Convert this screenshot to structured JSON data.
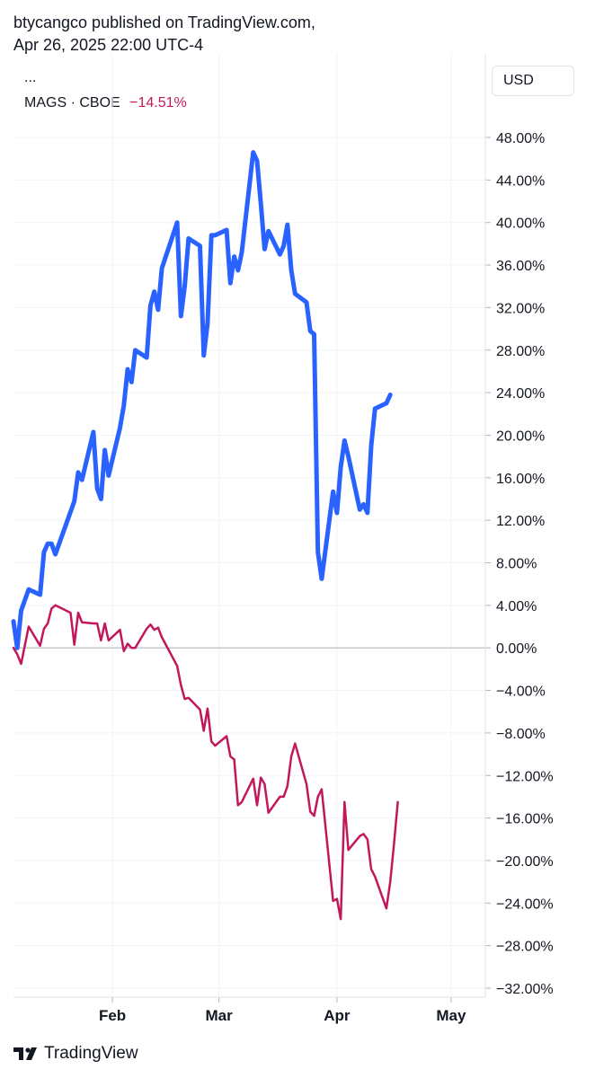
{
  "header": {
    "line1": "btycangco published on TradingView.com,",
    "line2": "Apr 26, 2025 22:00 UTC-4"
  },
  "legend": {
    "ellipsis": "...",
    "symbol": "MAGS · CBOE",
    "change": "−14.51%"
  },
  "currency_label": "USD",
  "footer": {
    "brand": "TradingView"
  },
  "colors": {
    "blue_series": "#2962ff",
    "mags_series": "#c2185b",
    "grid": "#f0f3fa",
    "zero_line": "#b2b5be",
    "axis_text": "#131722"
  },
  "chart_data": {
    "type": "line",
    "y_unit": "%",
    "ylim": [
      -32,
      48
    ],
    "y_ticks": [
      {
        "value": 48,
        "label": "48.00%"
      },
      {
        "value": 44,
        "label": "44.00%"
      },
      {
        "value": 40,
        "label": "40.00%"
      },
      {
        "value": 36,
        "label": "36.00%"
      },
      {
        "value": 32,
        "label": "32.00%"
      },
      {
        "value": 28,
        "label": "28.00%"
      },
      {
        "value": 24,
        "label": "24.00%"
      },
      {
        "value": 20,
        "label": "20.00%"
      },
      {
        "value": 16,
        "label": "16.00%"
      },
      {
        "value": 12,
        "label": "12.00%"
      },
      {
        "value": 8,
        "label": "8.00%"
      },
      {
        "value": 4,
        "label": "4.00%"
      },
      {
        "value": 0,
        "label": "0.00%"
      },
      {
        "value": -4,
        "label": "−4.00%"
      },
      {
        "value": -8,
        "label": "−8.00%"
      },
      {
        "value": -12,
        "label": "−12.00%"
      },
      {
        "value": -16,
        "label": "−16.00%"
      },
      {
        "value": -20,
        "label": "−20.00%"
      },
      {
        "value": -24,
        "label": "−24.00%"
      },
      {
        "value": -28,
        "label": "−28.00%"
      },
      {
        "value": -32,
        "label": "−32.00%"
      }
    ],
    "x_range": [
      "2025-01-06",
      "2025-05-10"
    ],
    "x_ticks": [
      {
        "date": "2025-02-01",
        "label": "Feb"
      },
      {
        "date": "2025-03-01",
        "label": "Mar"
      },
      {
        "date": "2025-04-01",
        "label": "Apr"
      },
      {
        "date": "2025-05-01",
        "label": "May"
      }
    ],
    "grid": true,
    "legend_position": "top-left",
    "series": [
      {
        "x": [
          "2025-01-06",
          "2025-01-07",
          "2025-01-08",
          "2025-01-10",
          "2025-01-13",
          "2025-01-14",
          "2025-01-15",
          "2025-01-16",
          "2025-01-17",
          "2025-01-21",
          "2025-01-22",
          "2025-01-23",
          "2025-01-24",
          "2025-01-27",
          "2025-01-28",
          "2025-01-29",
          "2025-01-30",
          "2025-01-31",
          "2025-02-03",
          "2025-02-04",
          "2025-02-05",
          "2025-02-06",
          "2025-02-07",
          "2025-02-10",
          "2025-02-11",
          "2025-02-12",
          "2025-02-13",
          "2025-02-14",
          "2025-02-18",
          "2025-02-19",
          "2025-02-20",
          "2025-02-21",
          "2025-02-24",
          "2025-02-25",
          "2025-02-26",
          "2025-02-27",
          "2025-02-28",
          "2025-03-03",
          "2025-03-04",
          "2025-03-05",
          "2025-03-06",
          "2025-03-07",
          "2025-03-10",
          "2025-03-11",
          "2025-03-12",
          "2025-03-13",
          "2025-03-14",
          "2025-03-17",
          "2025-03-18",
          "2025-03-19",
          "2025-03-20",
          "2025-03-21",
          "2025-03-24",
          "2025-03-25",
          "2025-03-26",
          "2025-03-27",
          "2025-03-28",
          "2025-03-31",
          "2025-04-01",
          "2025-04-02",
          "2025-04-03",
          "2025-04-04",
          "2025-04-07",
          "2025-04-08",
          "2025-04-09",
          "2025-04-10",
          "2025-04-11",
          "2025-04-14",
          "2025-04-15",
          "2025-04-16",
          "2025-04-17",
          "2025-04-21",
          "2025-04-22",
          "2025-04-23",
          "2025-04-24",
          "2025-04-25"
        ],
        "values": [
          2.5,
          0.0,
          3.5,
          5.5,
          5.0,
          9.0,
          9.8,
          9.8,
          8.8,
          12.8,
          13.8,
          16.5,
          15.8,
          20.3,
          15.0,
          14.0,
          18.6,
          16.2,
          20.7,
          22.8,
          26.2,
          25.0,
          28.0,
          27.3,
          32.2,
          33.5,
          31.8,
          35.7,
          40.0,
          31.2,
          34.0,
          38.5,
          37.8,
          27.5,
          30.5,
          38.8,
          38.8,
          39.3,
          34.3,
          36.8,
          35.5,
          37.2,
          46.6,
          45.8,
          41.8,
          37.5,
          39.2,
          37.0,
          37.8,
          39.8,
          35.5,
          33.3,
          32.5,
          29.8,
          29.5,
          9.0,
          6.5,
          14.7,
          12.7,
          17.0,
          19.5,
          18.0,
          13.0,
          13.5,
          12.7,
          19.0,
          22.5,
          23.0,
          23.8,
          null,
          null,
          null,
          null,
          null,
          null,
          null
        ]
      },
      {
        "x": [
          "2025-01-06",
          "2025-01-07",
          "2025-01-08",
          "2025-01-10",
          "2025-01-13",
          "2025-01-14",
          "2025-01-15",
          "2025-01-16",
          "2025-01-17",
          "2025-01-21",
          "2025-01-22",
          "2025-01-23",
          "2025-01-24",
          "2025-01-27",
          "2025-01-28",
          "2025-01-29",
          "2025-01-30",
          "2025-01-31",
          "2025-02-03",
          "2025-02-04",
          "2025-02-05",
          "2025-02-06",
          "2025-02-07",
          "2025-02-10",
          "2025-02-11",
          "2025-02-12",
          "2025-02-13",
          "2025-02-14",
          "2025-02-18",
          "2025-02-19",
          "2025-02-20",
          "2025-02-21",
          "2025-02-24",
          "2025-02-25",
          "2025-02-26",
          "2025-02-27",
          "2025-02-28",
          "2025-03-03",
          "2025-03-04",
          "2025-03-05",
          "2025-03-06",
          "2025-03-07",
          "2025-03-10",
          "2025-03-11",
          "2025-03-12",
          "2025-03-13",
          "2025-03-14",
          "2025-03-17",
          "2025-03-18",
          "2025-03-19",
          "2025-03-20",
          "2025-03-21",
          "2025-03-24",
          "2025-03-25",
          "2025-03-26",
          "2025-03-27",
          "2025-03-28",
          "2025-03-31",
          "2025-04-01",
          "2025-04-02",
          "2025-04-03",
          "2025-04-04",
          "2025-04-07",
          "2025-04-08",
          "2025-04-09",
          "2025-04-10",
          "2025-04-11",
          "2025-04-14",
          "2025-04-15",
          "2025-04-16",
          "2025-04-17",
          "2025-04-21",
          "2025-04-22",
          "2025-04-23",
          "2025-04-24",
          "2025-04-25"
        ],
        "values": [
          0.0,
          -0.6,
          -1.5,
          2.0,
          0.2,
          1.8,
          2.3,
          3.7,
          4.0,
          3.3,
          0.3,
          3.3,
          2.4,
          2.3,
          2.3,
          0.7,
          2.3,
          0.7,
          1.7,
          -0.3,
          0.4,
          0.0,
          0.0,
          1.8,
          2.2,
          1.7,
          1.9,
          1.0,
          -1.7,
          -3.5,
          -4.8,
          -4.7,
          -5.8,
          -7.8,
          -5.7,
          -8.8,
          -9.2,
          -8.3,
          -10.2,
          -10.5,
          -14.8,
          -14.5,
          -12.3,
          -14.8,
          -12.2,
          -12.8,
          -15.5,
          -14.0,
          -14.0,
          -13.0,
          -10.2,
          -9.0,
          -12.8,
          -15.4,
          -15.8,
          -14.0,
          -13.3,
          -23.8,
          -23.6,
          -25.5,
          -14.5,
          -19.0,
          -17.7,
          -17.5,
          -18.0,
          -20.8,
          -21.5,
          -24.5,
          -22.0,
          -18.4,
          -14.5,
          null,
          null,
          null,
          null,
          null
        ]
      }
    ]
  }
}
